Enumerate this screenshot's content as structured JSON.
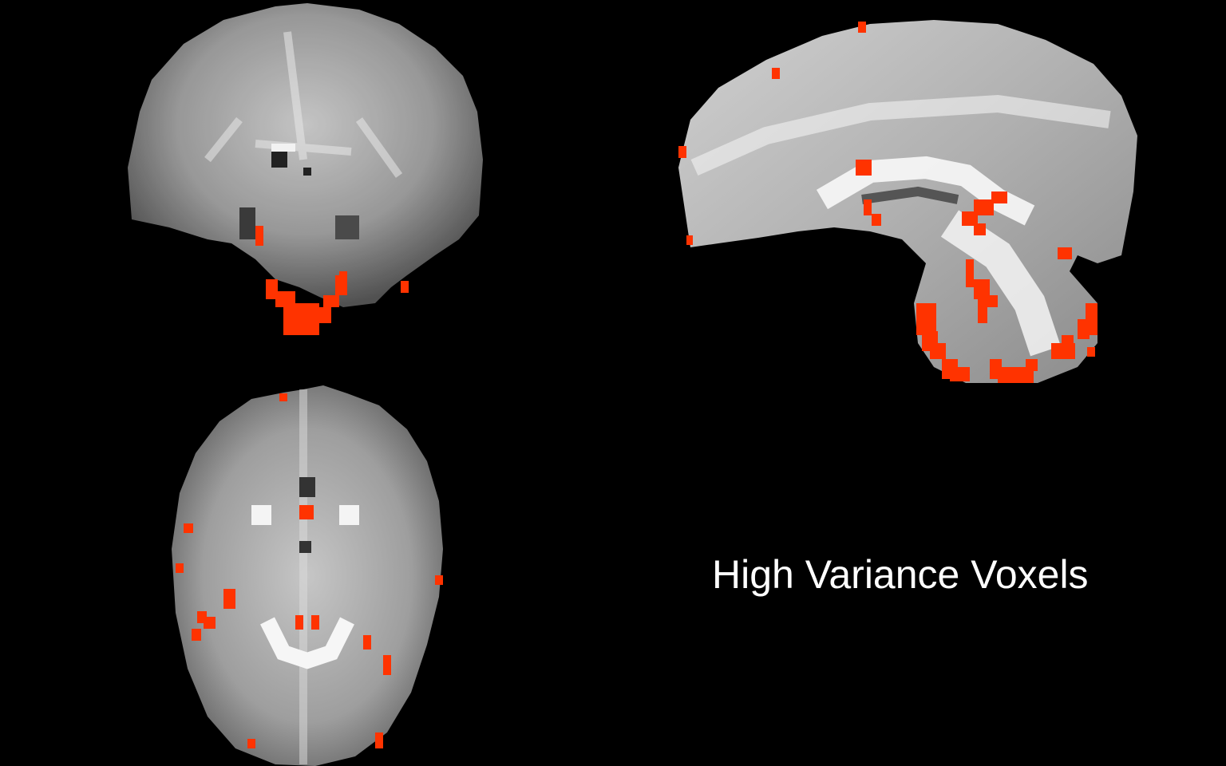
{
  "figure": {
    "caption": "High Variance Voxels",
    "background_color": "#000000",
    "overlay_color": "#ff3300",
    "views": [
      {
        "name": "coronal-slice",
        "plane": "coronal"
      },
      {
        "name": "sagittal-slice",
        "plane": "sagittal"
      },
      {
        "name": "axial-slice",
        "plane": "axial"
      }
    ]
  }
}
